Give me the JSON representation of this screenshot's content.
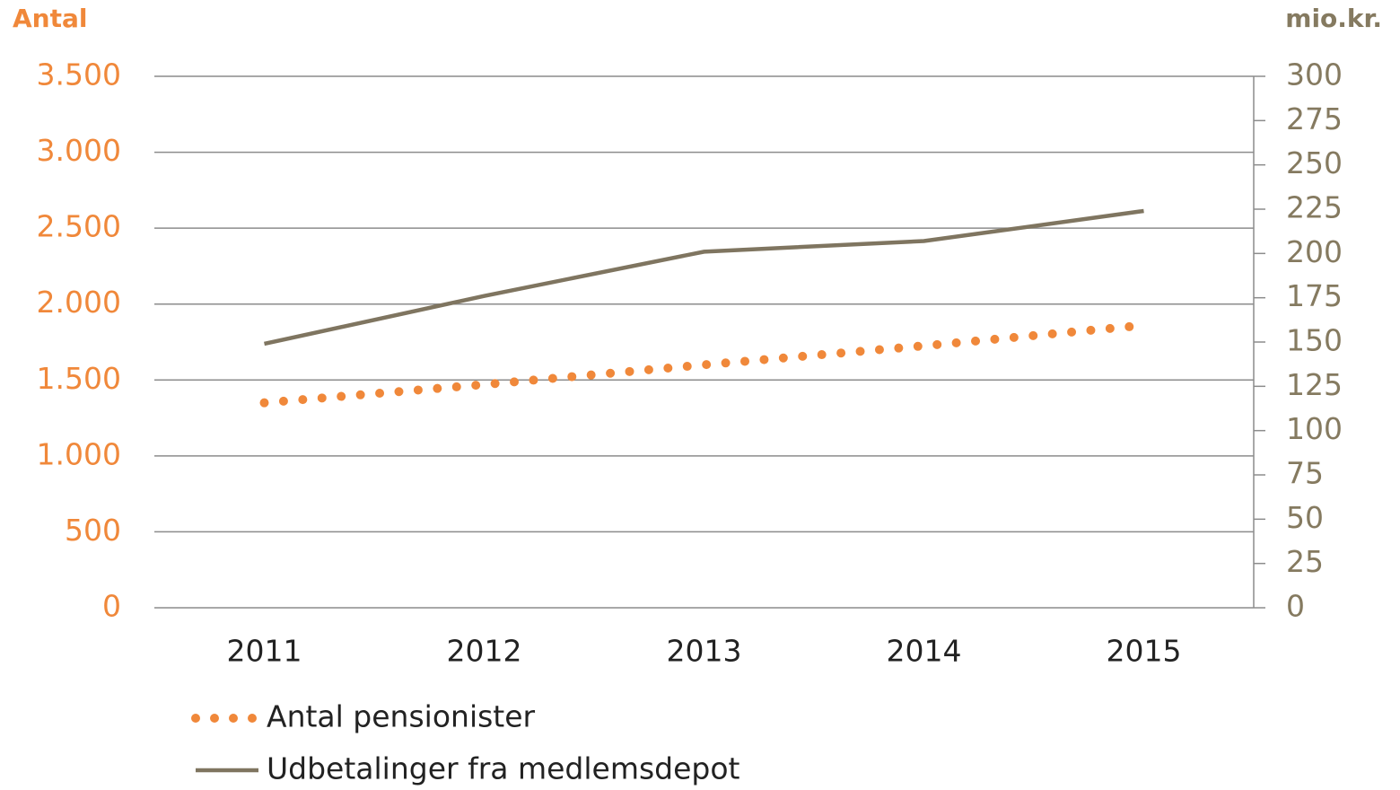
{
  "chart_data": {
    "type": "line",
    "categories": [
      "2011",
      "2012",
      "2013",
      "2014",
      "2015"
    ],
    "y_label": "Antal",
    "y2_label": "mio.kr.",
    "ylim": [
      0,
      3500
    ],
    "yticks": [
      0,
      500,
      {
        "value": 1000,
        "label": "1.000"
      },
      {
        "value": 1500,
        "label": "1.500"
      },
      {
        "value": 2000,
        "label": "2.000"
      },
      {
        "value": 2500,
        "label": "2.500"
      },
      {
        "value": 3000,
        "label": "3.000"
      },
      {
        "value": 3500,
        "label": "3.500"
      }
    ],
    "y2lim": [
      0,
      300
    ],
    "y2ticks": [
      0,
      25,
      50,
      75,
      100,
      125,
      150,
      175,
      200,
      225,
      250,
      275,
      300
    ],
    "grid": true,
    "legend": "bottom",
    "y_color": "#f0883a",
    "y2_color": "#857a60",
    "series": [
      {
        "name": "Antal pensionister",
        "color": "#f0883a",
        "style": "dotted",
        "values": [
          1350,
          1470,
          1600,
          1725,
          1860
        ]
      },
      {
        "name": "Udbetalinger fra medlemsdepot",
        "color": "#7f7560",
        "style": "solid",
        "axis": "y2",
        "values": [
          149,
          176,
          201,
          207,
          224
        ]
      }
    ]
  }
}
